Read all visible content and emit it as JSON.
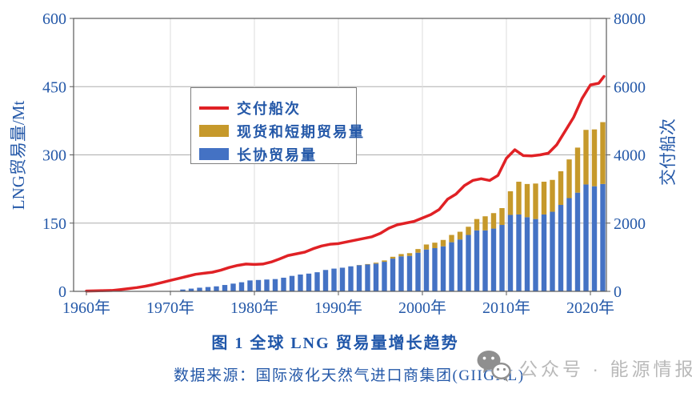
{
  "figure": {
    "caption": "图 1 全球 LNG 贸易量增长趋势",
    "source": "数据来源：国际液化天然气进口商集团(GIIGNL)"
  },
  "watermark": {
    "icon": "wechat-icon",
    "text": "公众号 · 能源情报",
    "color": "#b9b9b9"
  },
  "chart_data": {
    "type": "bar",
    "variant": "stacked bars with overlaid line, dual y-axis",
    "title": "图 1 全球 LNG 贸易量增长趋势",
    "grid": "horizontal major gridlines, faint vertical decade gridlines",
    "legend_position": "upper left inside plot",
    "legend_order": [
      "交付船次",
      "现货和短期贸易量",
      "长协贸易量"
    ],
    "x_axis": {
      "tick_years": [
        1960,
        1970,
        1980,
        1990,
        2000,
        2010,
        2020
      ],
      "tick_labels": [
        "1960年",
        "1970年",
        "1980年",
        "1990年",
        "2000年",
        "2010年",
        "2020年"
      ],
      "range": [
        1958.5,
        2022.3
      ]
    },
    "left_axis": {
      "label": "LNG贸易量/Mt",
      "lim": [
        0,
        600
      ],
      "ticks": [
        0,
        150,
        300,
        450,
        600
      ],
      "applies_to": "bars"
    },
    "right_axis": {
      "label": "交付船次",
      "lim": [
        0,
        8000
      ],
      "ticks": [
        0,
        2000,
        4000,
        6000,
        8000
      ],
      "applies_to": "line"
    },
    "bars": {
      "stacked": true,
      "unit": "Mt",
      "years": [
        1971,
        1972,
        1973,
        1974,
        1975,
        1976,
        1977,
        1978,
        1979,
        1980,
        1981,
        1982,
        1983,
        1984,
        1985,
        1986,
        1987,
        1988,
        1989,
        1990,
        1991,
        1992,
        1993,
        1994,
        1995,
        1996,
        1997,
        1998,
        1999,
        2000,
        2001,
        2002,
        2003,
        2004,
        2005,
        2006,
        2007,
        2008,
        2009,
        2010,
        2011,
        2012,
        2013,
        2014,
        2015,
        2016,
        2017,
        2018,
        2019,
        2020,
        2021
      ],
      "series": [
        {
          "name": "长协贸易量",
          "color": "#4472C4",
          "values": [
            4,
            6,
            8,
            9.5,
            11,
            14,
            17,
            20,
            24,
            25,
            26,
            27,
            30,
            34,
            37,
            39,
            42,
            47,
            50,
            52,
            55,
            57.5,
            59,
            61,
            65,
            72,
            77,
            78,
            85,
            92,
            95,
            99,
            108,
            114,
            124,
            134,
            134,
            138,
            146,
            168,
            169,
            163,
            159,
            169,
            175,
            190,
            205,
            217,
            235,
            231,
            236
          ]
        },
        {
          "name": "现货和短期贸易量",
          "color": "#C6992B",
          "values": [
            0,
            0,
            0,
            0,
            0,
            0,
            0,
            0,
            0,
            0,
            0,
            0,
            0,
            0,
            0,
            0,
            0,
            0,
            0,
            0,
            0,
            0.5,
            1,
            2,
            3,
            4,
            5,
            6,
            8,
            11,
            12,
            14,
            16,
            17,
            18,
            25,
            31,
            34,
            37,
            52,
            72,
            73,
            78,
            72,
            70,
            74,
            85,
            99,
            120,
            125,
            136
          ]
        }
      ]
    },
    "line": {
      "name": "交付船次",
      "color": "#E02125",
      "unit": "cargo deliveries",
      "years": [
        1960,
        1961,
        1962,
        1963,
        1964,
        1965,
        1966,
        1967,
        1968,
        1969,
        1970,
        1971,
        1972,
        1973,
        1974,
        1975,
        1976,
        1977,
        1978,
        1979,
        1980,
        1981,
        1982,
        1983,
        1984,
        1985,
        1986,
        1987,
        1988,
        1989,
        1990,
        1991,
        1992,
        1993,
        1994,
        1995,
        1996,
        1997,
        1998,
        1999,
        2000,
        2001,
        2002,
        2003,
        2004,
        2005,
        2006,
        2007,
        2008,
        2009,
        2010,
        2011,
        2012,
        2013,
        2014,
        2015,
        2016,
        2017,
        2018,
        2019,
        2020,
        2021,
        2022
      ],
      "values": [
        10,
        15,
        20,
        25,
        50,
        80,
        110,
        150,
        200,
        260,
        320,
        380,
        440,
        500,
        530,
        560,
        620,
        700,
        760,
        800,
        790,
        800,
        860,
        950,
        1050,
        1100,
        1150,
        1250,
        1330,
        1380,
        1400,
        1450,
        1500,
        1550,
        1600,
        1700,
        1850,
        1950,
        2000,
        2050,
        2150,
        2250,
        2400,
        2700,
        2850,
        3100,
        3250,
        3300,
        3250,
        3400,
        3900,
        4150,
        3980,
        3970,
        4000,
        4050,
        4300,
        4700,
        5100,
        5650,
        6050,
        6100,
        6300
      ]
    },
    "style_colors": {
      "axis_text": "#2458a8",
      "grid_h": "#adadad",
      "grid_v": "#dddddd",
      "plot_border": "#595959"
    }
  }
}
